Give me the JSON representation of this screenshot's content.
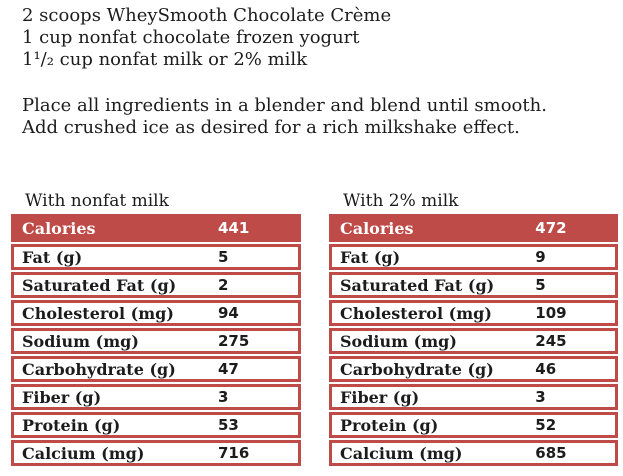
{
  "colors": {
    "accent_red": "#BE4B48",
    "header_text": "#ffffff",
    "body_text": "#1c1c1c",
    "page_background": "#ffffff"
  },
  "recipe": {
    "ingredients": [
      "2 scoops WheySmooth Chocolate Crème",
      "1 cup nonfat chocolate frozen yogurt",
      "1¹/₂ cup nonfat milk or 2% milk"
    ],
    "instructions": [
      "Place all ingredients in a blender and blend until smooth.",
      "Add crushed ice as desired for a rich milkshake effect."
    ]
  },
  "tables": [
    {
      "title": "With nonfat milk",
      "header": {
        "label": "Calories",
        "value": "441"
      },
      "rows": [
        {
          "label": "Fat (g)",
          "value": "5"
        },
        {
          "label": "Saturated Fat (g)",
          "value": "2"
        },
        {
          "label": "Cholesterol (mg)",
          "value": "94"
        },
        {
          "label": "Sodium (mg)",
          "value": "275"
        },
        {
          "label": "Carbohydrate (g)",
          "value": "47"
        },
        {
          "label": "Fiber (g)",
          "value": "3"
        },
        {
          "label": "Protein (g)",
          "value": "53"
        },
        {
          "label": "Calcium (mg)",
          "value": "716"
        }
      ]
    },
    {
      "title": "With 2% milk",
      "header": {
        "label": "Calories",
        "value": "472"
      },
      "rows": [
        {
          "label": "Fat (g)",
          "value": "9"
        },
        {
          "label": "Saturated Fat (g)",
          "value": "5"
        },
        {
          "label": "Cholesterol (mg)",
          "value": "109"
        },
        {
          "label": "Sodium (mg)",
          "value": "245"
        },
        {
          "label": "Carbohydrate (g)",
          "value": "46"
        },
        {
          "label": "Fiber (g)",
          "value": "3"
        },
        {
          "label": "Protein (g)",
          "value": "52"
        },
        {
          "label": "Calcium (mg)",
          "value": "685"
        }
      ]
    }
  ]
}
